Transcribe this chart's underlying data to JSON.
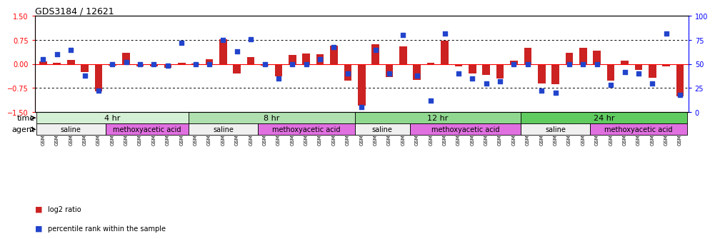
{
  "title": "GDS3184 / 12621",
  "samples": [
    "GSM253537",
    "GSM253539",
    "GSM253562",
    "GSM253564",
    "GSM253569",
    "GSM253533",
    "GSM253538",
    "GSM253540",
    "GSM253541",
    "GSM253542",
    "GSM253568",
    "GSM253530",
    "GSM253543",
    "GSM253544",
    "GSM253555",
    "GSM253556",
    "GSM253565",
    "GSM253534",
    "GSM253545",
    "GSM253546",
    "GSM253557",
    "GSM253558",
    "GSM253559",
    "GSM253531",
    "GSM253547",
    "GSM253548",
    "GSM253566",
    "GSM253570",
    "GSM253571",
    "GSM253535",
    "GSM253550",
    "GSM253560",
    "GSM253561",
    "GSM253563",
    "GSM253572",
    "GSM253532",
    "GSM253551",
    "GSM253552",
    "GSM253567",
    "GSM253573",
    "GSM253574",
    "GSM253536",
    "GSM253549",
    "GSM253553",
    "GSM253554",
    "GSM253575",
    "GSM253576"
  ],
  "log2_ratio": [
    0.08,
    0.05,
    0.12,
    -0.25,
    -0.85,
    -0.05,
    0.35,
    -0.08,
    -0.08,
    -0.12,
    0.03,
    0.02,
    0.15,
    0.78,
    -0.3,
    0.22,
    -0.05,
    -0.38,
    0.28,
    0.32,
    0.3,
    0.58,
    -0.52,
    -1.3,
    0.62,
    -0.4,
    0.55,
    -0.5,
    0.05,
    0.72,
    -0.08,
    -0.3,
    -0.35,
    -0.45,
    0.1,
    0.5,
    -0.6,
    -0.62,
    0.35,
    0.5,
    0.42,
    -0.52,
    0.1,
    -0.18,
    -0.42,
    -0.08,
    -1.0
  ],
  "percentile": [
    55,
    60,
    65,
    38,
    22,
    50,
    52,
    50,
    50,
    48,
    72,
    50,
    50,
    75,
    63,
    76,
    50,
    35,
    50,
    50,
    55,
    68,
    40,
    5,
    65,
    40,
    80,
    38,
    12,
    82,
    40,
    35,
    30,
    32,
    50,
    50,
    22,
    20,
    50,
    50,
    50,
    28,
    42,
    40,
    30,
    82,
    18
  ],
  "time_groups": [
    {
      "label": "4 hr",
      "start": 0,
      "end": 11,
      "color": "#d4f0d4"
    },
    {
      "label": "8 hr",
      "start": 11,
      "end": 23,
      "color": "#b0e0b0"
    },
    {
      "label": "12 hr",
      "start": 23,
      "end": 35,
      "color": "#90d890"
    },
    {
      "label": "24 hr",
      "start": 35,
      "end": 47,
      "color": "#60cc60"
    }
  ],
  "agent_groups": [
    {
      "label": "saline",
      "start": 0,
      "end": 5,
      "color": "#f0f0f0"
    },
    {
      "label": "methoxyacetic acid",
      "start": 5,
      "end": 11,
      "color": "#e070e0"
    },
    {
      "label": "saline",
      "start": 11,
      "end": 16,
      "color": "#f0f0f0"
    },
    {
      "label": "methoxyacetic acid",
      "start": 16,
      "end": 23,
      "color": "#e070e0"
    },
    {
      "label": "saline",
      "start": 23,
      "end": 27,
      "color": "#f0f0f0"
    },
    {
      "label": "methoxyacetic acid",
      "start": 27,
      "end": 35,
      "color": "#e070e0"
    },
    {
      "label": "saline",
      "start": 35,
      "end": 40,
      "color": "#f0f0f0"
    },
    {
      "label": "methoxyacetic acid",
      "start": 40,
      "end": 47,
      "color": "#e070e0"
    }
  ],
  "ylim_left": [
    -1.5,
    1.5
  ],
  "ylim_right": [
    0,
    100
  ],
  "yticks_left": [
    -1.5,
    -0.75,
    0,
    0.75,
    1.5
  ],
  "yticks_right": [
    0,
    25,
    50,
    75,
    100
  ],
  "hlines": [
    0.75,
    -0.75
  ],
  "bar_color": "#cc2222",
  "dot_color": "#2244cc",
  "background_color": "#ffffff"
}
